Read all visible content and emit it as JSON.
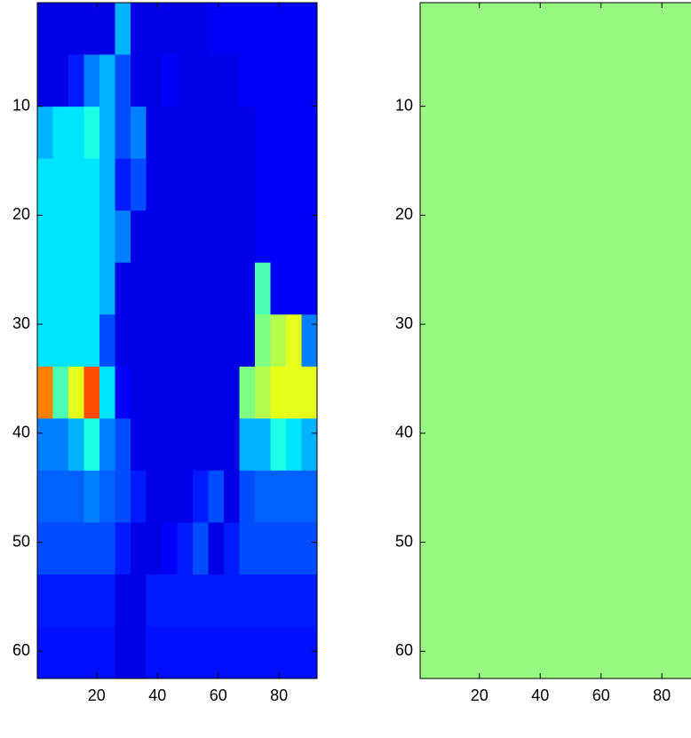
{
  "chart_data": [
    {
      "type": "heatmap",
      "clim": [
        0,
        1
      ],
      "colormap": "jet",
      "xlim": [
        0.5,
        92.5
      ],
      "ylim": [
        0.5,
        62.5
      ],
      "xticks": [
        20,
        40,
        60,
        80
      ],
      "yticks": [
        10,
        20,
        30,
        40,
        50,
        60
      ],
      "values": [
        [
          0.1,
          0.1,
          0.1,
          0.1,
          0.1,
          0.3,
          0.1,
          0.1,
          0.1,
          0.1,
          0.1,
          0.12,
          0.12,
          0.12,
          0.12,
          0.12,
          0.12,
          0.12
        ],
        [
          0.1,
          0.1,
          0.15,
          0.25,
          0.3,
          0.2,
          0.1,
          0.1,
          0.12,
          0.1,
          0.1,
          0.1,
          0.1,
          0.12,
          0.12,
          0.12,
          0.12,
          0.12
        ],
        [
          0.3,
          0.35,
          0.35,
          0.4,
          0.3,
          0.2,
          0.25,
          0.1,
          0.1,
          0.1,
          0.1,
          0.1,
          0.1,
          0.1,
          0.12,
          0.12,
          0.12,
          0.12
        ],
        [
          0.35,
          0.35,
          0.35,
          0.35,
          0.3,
          0.15,
          0.2,
          0.1,
          0.1,
          0.1,
          0.1,
          0.1,
          0.1,
          0.1,
          0.12,
          0.12,
          0.12,
          0.12
        ],
        [
          0.35,
          0.35,
          0.35,
          0.35,
          0.3,
          0.25,
          0.1,
          0.1,
          0.1,
          0.1,
          0.1,
          0.1,
          0.1,
          0.1,
          0.12,
          0.12,
          0.12,
          0.12
        ],
        [
          0.35,
          0.35,
          0.35,
          0.35,
          0.3,
          0.1,
          0.1,
          0.1,
          0.1,
          0.1,
          0.1,
          0.1,
          0.1,
          0.1,
          0.45,
          0.12,
          0.12,
          0.12
        ],
        [
          0.35,
          0.35,
          0.35,
          0.35,
          0.2,
          0.1,
          0.1,
          0.1,
          0.1,
          0.1,
          0.1,
          0.1,
          0.1,
          0.1,
          0.5,
          0.55,
          0.6,
          0.25
        ],
        [
          0.75,
          0.45,
          0.6,
          0.8,
          0.35,
          0.12,
          0.1,
          0.1,
          0.1,
          0.1,
          0.1,
          0.1,
          0.1,
          0.5,
          0.55,
          0.6,
          0.6,
          0.6
        ],
        [
          0.25,
          0.25,
          0.3,
          0.4,
          0.25,
          0.2,
          0.1,
          0.1,
          0.1,
          0.1,
          0.1,
          0.1,
          0.1,
          0.3,
          0.3,
          0.4,
          0.35,
          0.3
        ],
        [
          0.22,
          0.22,
          0.22,
          0.25,
          0.22,
          0.2,
          0.15,
          0.1,
          0.1,
          0.1,
          0.15,
          0.2,
          0.1,
          0.2,
          0.22,
          0.22,
          0.22,
          0.22
        ],
        [
          0.2,
          0.2,
          0.2,
          0.2,
          0.2,
          0.15,
          0.1,
          0.1,
          0.12,
          0.15,
          0.2,
          0.1,
          0.15,
          0.2,
          0.2,
          0.2,
          0.2,
          0.2
        ],
        [
          0.15,
          0.15,
          0.15,
          0.15,
          0.15,
          0.1,
          0.1,
          0.15,
          0.15,
          0.15,
          0.15,
          0.15,
          0.15,
          0.15,
          0.15,
          0.15,
          0.15,
          0.15
        ],
        [
          0.14,
          0.14,
          0.14,
          0.14,
          0.14,
          0.1,
          0.1,
          0.14,
          0.14,
          0.14,
          0.14,
          0.14,
          0.14,
          0.14,
          0.14,
          0.14,
          0.14,
          0.14
        ]
      ]
    },
    {
      "type": "uniform",
      "color": "#96fa82",
      "xlim": [
        0.5,
        92.5
      ],
      "ylim": [
        0.5,
        62.5
      ],
      "xticks": [
        20,
        40,
        60,
        80
      ],
      "yticks": [
        10,
        20,
        30,
        40,
        50,
        60
      ]
    }
  ]
}
